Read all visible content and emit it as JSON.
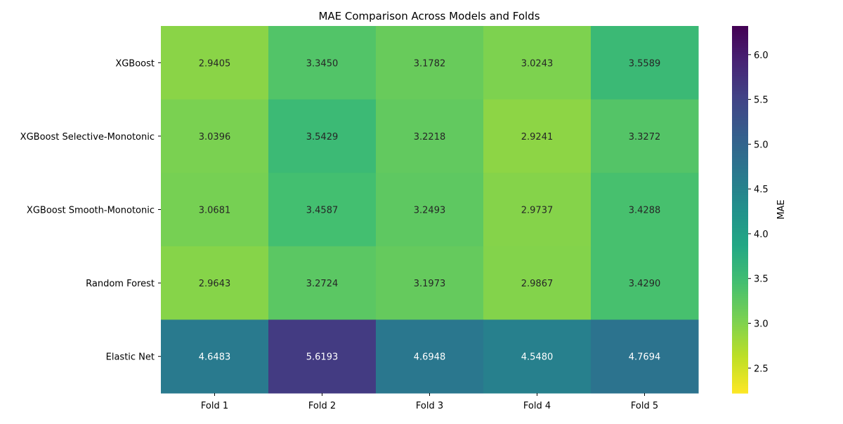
{
  "chart_data": {
    "type": "heatmap",
    "title": "MAE Comparison Across Models and Folds",
    "xlabel": "",
    "ylabel": "",
    "columns": [
      "Fold 1",
      "Fold 2",
      "Fold 3",
      "Fold 4",
      "Fold 5"
    ],
    "rows": [
      "XGBoost",
      "XGBoost Selective-Monotonic",
      "XGBoost Smooth-Monotonic",
      "Random Forest",
      "Elastic Net"
    ],
    "values": [
      [
        2.9405,
        3.345,
        3.1782,
        3.0243,
        3.5589
      ],
      [
        3.0396,
        3.5429,
        3.2218,
        2.9241,
        3.3272
      ],
      [
        3.0681,
        3.4587,
        3.2493,
        2.9737,
        3.4288
      ],
      [
        2.9643,
        3.2724,
        3.1973,
        2.9867,
        3.429
      ],
      [
        4.6483,
        5.6193,
        4.6948,
        4.548,
        4.7694
      ]
    ],
    "value_format_decimals": 4,
    "colorbar": {
      "label": "MAE",
      "min": 2.22,
      "max": 6.32,
      "ticks": [
        2.5,
        3.0,
        3.5,
        4.0,
        4.5,
        5.0,
        5.5,
        6.0
      ],
      "colormap": "viridis_r"
    }
  }
}
